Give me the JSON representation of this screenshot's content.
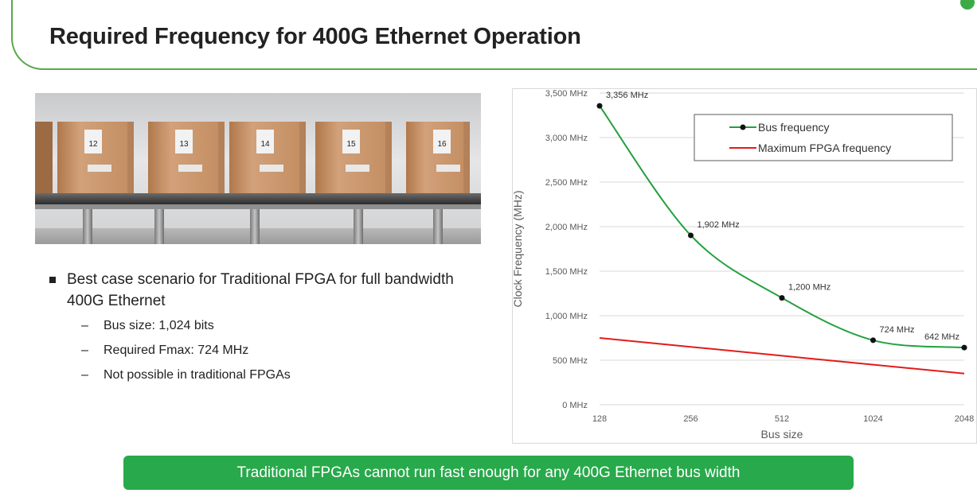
{
  "slide": {
    "title": "Required Frequency for 400G Ethernet Operation"
  },
  "illustration": {
    "box_numbers": [
      "12",
      "13",
      "14",
      "15",
      "16"
    ]
  },
  "bullets": {
    "main": "Best case scenario for Traditional FPGA for full bandwidth 400G Ethernet",
    "sub": [
      "Bus size: 1,024 bits",
      "Required Fmax: 724 MHz",
      "Not possible in traditional FPGAs"
    ]
  },
  "banner": {
    "text": "Traditional FPGAs cannot run fast enough for any 400G Ethernet bus width"
  },
  "colors": {
    "accent_green": "#5aa84a",
    "banner_green": "#28a94b",
    "bus_line": "#22a13f",
    "max_line": "#e31b1b"
  },
  "chart_data": {
    "type": "line",
    "xlabel": "Bus size",
    "ylabel": "Clock Frequency (MHz)",
    "x_scale": "log2",
    "categories": [
      "128",
      "256",
      "512",
      "1024",
      "2048"
    ],
    "x": [
      128,
      256,
      512,
      1024,
      2048
    ],
    "ylim": [
      0,
      3500
    ],
    "y_ticks": [
      0,
      500,
      1000,
      1500,
      2000,
      2500,
      3000,
      3500
    ],
    "y_tick_labels": [
      "0 MHz",
      "500 MHz",
      "1,000 MHz",
      "1,500 MHz",
      "2,000 MHz",
      "2,500 MHz",
      "3,000 MHz",
      "3,500 MHz"
    ],
    "grid": "horizontal",
    "legend_position": "top-right",
    "series": [
      {
        "name": "Bus frequency",
        "color": "#22a13f",
        "markers": true,
        "values": [
          3356,
          1902,
          1200,
          724,
          642
        ],
        "data_labels": [
          "3,356 MHz",
          "1,902 MHz",
          "1,200 MHz",
          "724 MHz",
          "642 MHz"
        ]
      },
      {
        "name": "Maximum FPGA frequency",
        "color": "#e31b1b",
        "markers": false,
        "values": [
          750,
          650,
          550,
          450,
          350
        ]
      }
    ]
  }
}
